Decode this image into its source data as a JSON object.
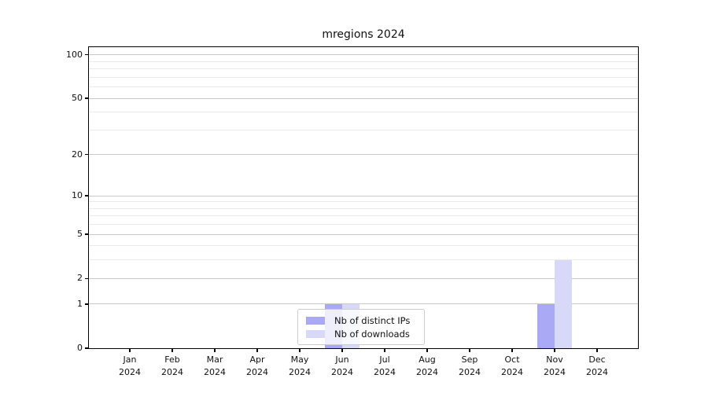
{
  "figure": {
    "title": "mregions 2024",
    "background": "#ffffff"
  },
  "colors": {
    "distinct_ips_bar": "#aaa9f5",
    "downloads_bar": "#d8d8f8",
    "grid_major": "#c9c9c9",
    "grid_minor": "#eaeaea",
    "spine": "#000000",
    "text": "#111111",
    "legend_border": "#cccccc"
  },
  "legend": {
    "position": "lower center"
  },
  "chart_data": {
    "type": "bar",
    "title": "mregions 2024",
    "categories": [
      "Jan",
      "Feb",
      "Mar",
      "Apr",
      "May",
      "Jun",
      "Jul",
      "Aug",
      "Sep",
      "Oct",
      "Nov",
      "Dec"
    ],
    "year_label": "2024",
    "series": [
      {
        "name": "Nb of distinct IPs",
        "color": "#aaa9f5",
        "values": [
          0,
          0,
          0,
          0,
          0,
          1,
          0,
          0,
          0,
          0,
          1,
          0
        ]
      },
      {
        "name": "Nb of downloads",
        "color": "#d8d8f8",
        "values": [
          0,
          0,
          0,
          0,
          0,
          1,
          0,
          0,
          0,
          0,
          3,
          0
        ]
      }
    ],
    "xlabel": "",
    "ylabel": "",
    "yscale": "log1p",
    "yticks": [
      0,
      1,
      2,
      5,
      10,
      20,
      50,
      100
    ],
    "minor_yticks": [
      3,
      4,
      6,
      7,
      8,
      9,
      30,
      40,
      60,
      70,
      80,
      90
    ],
    "ylim": [
      0,
      113
    ],
    "grid": true,
    "legend_position": "lower center"
  }
}
